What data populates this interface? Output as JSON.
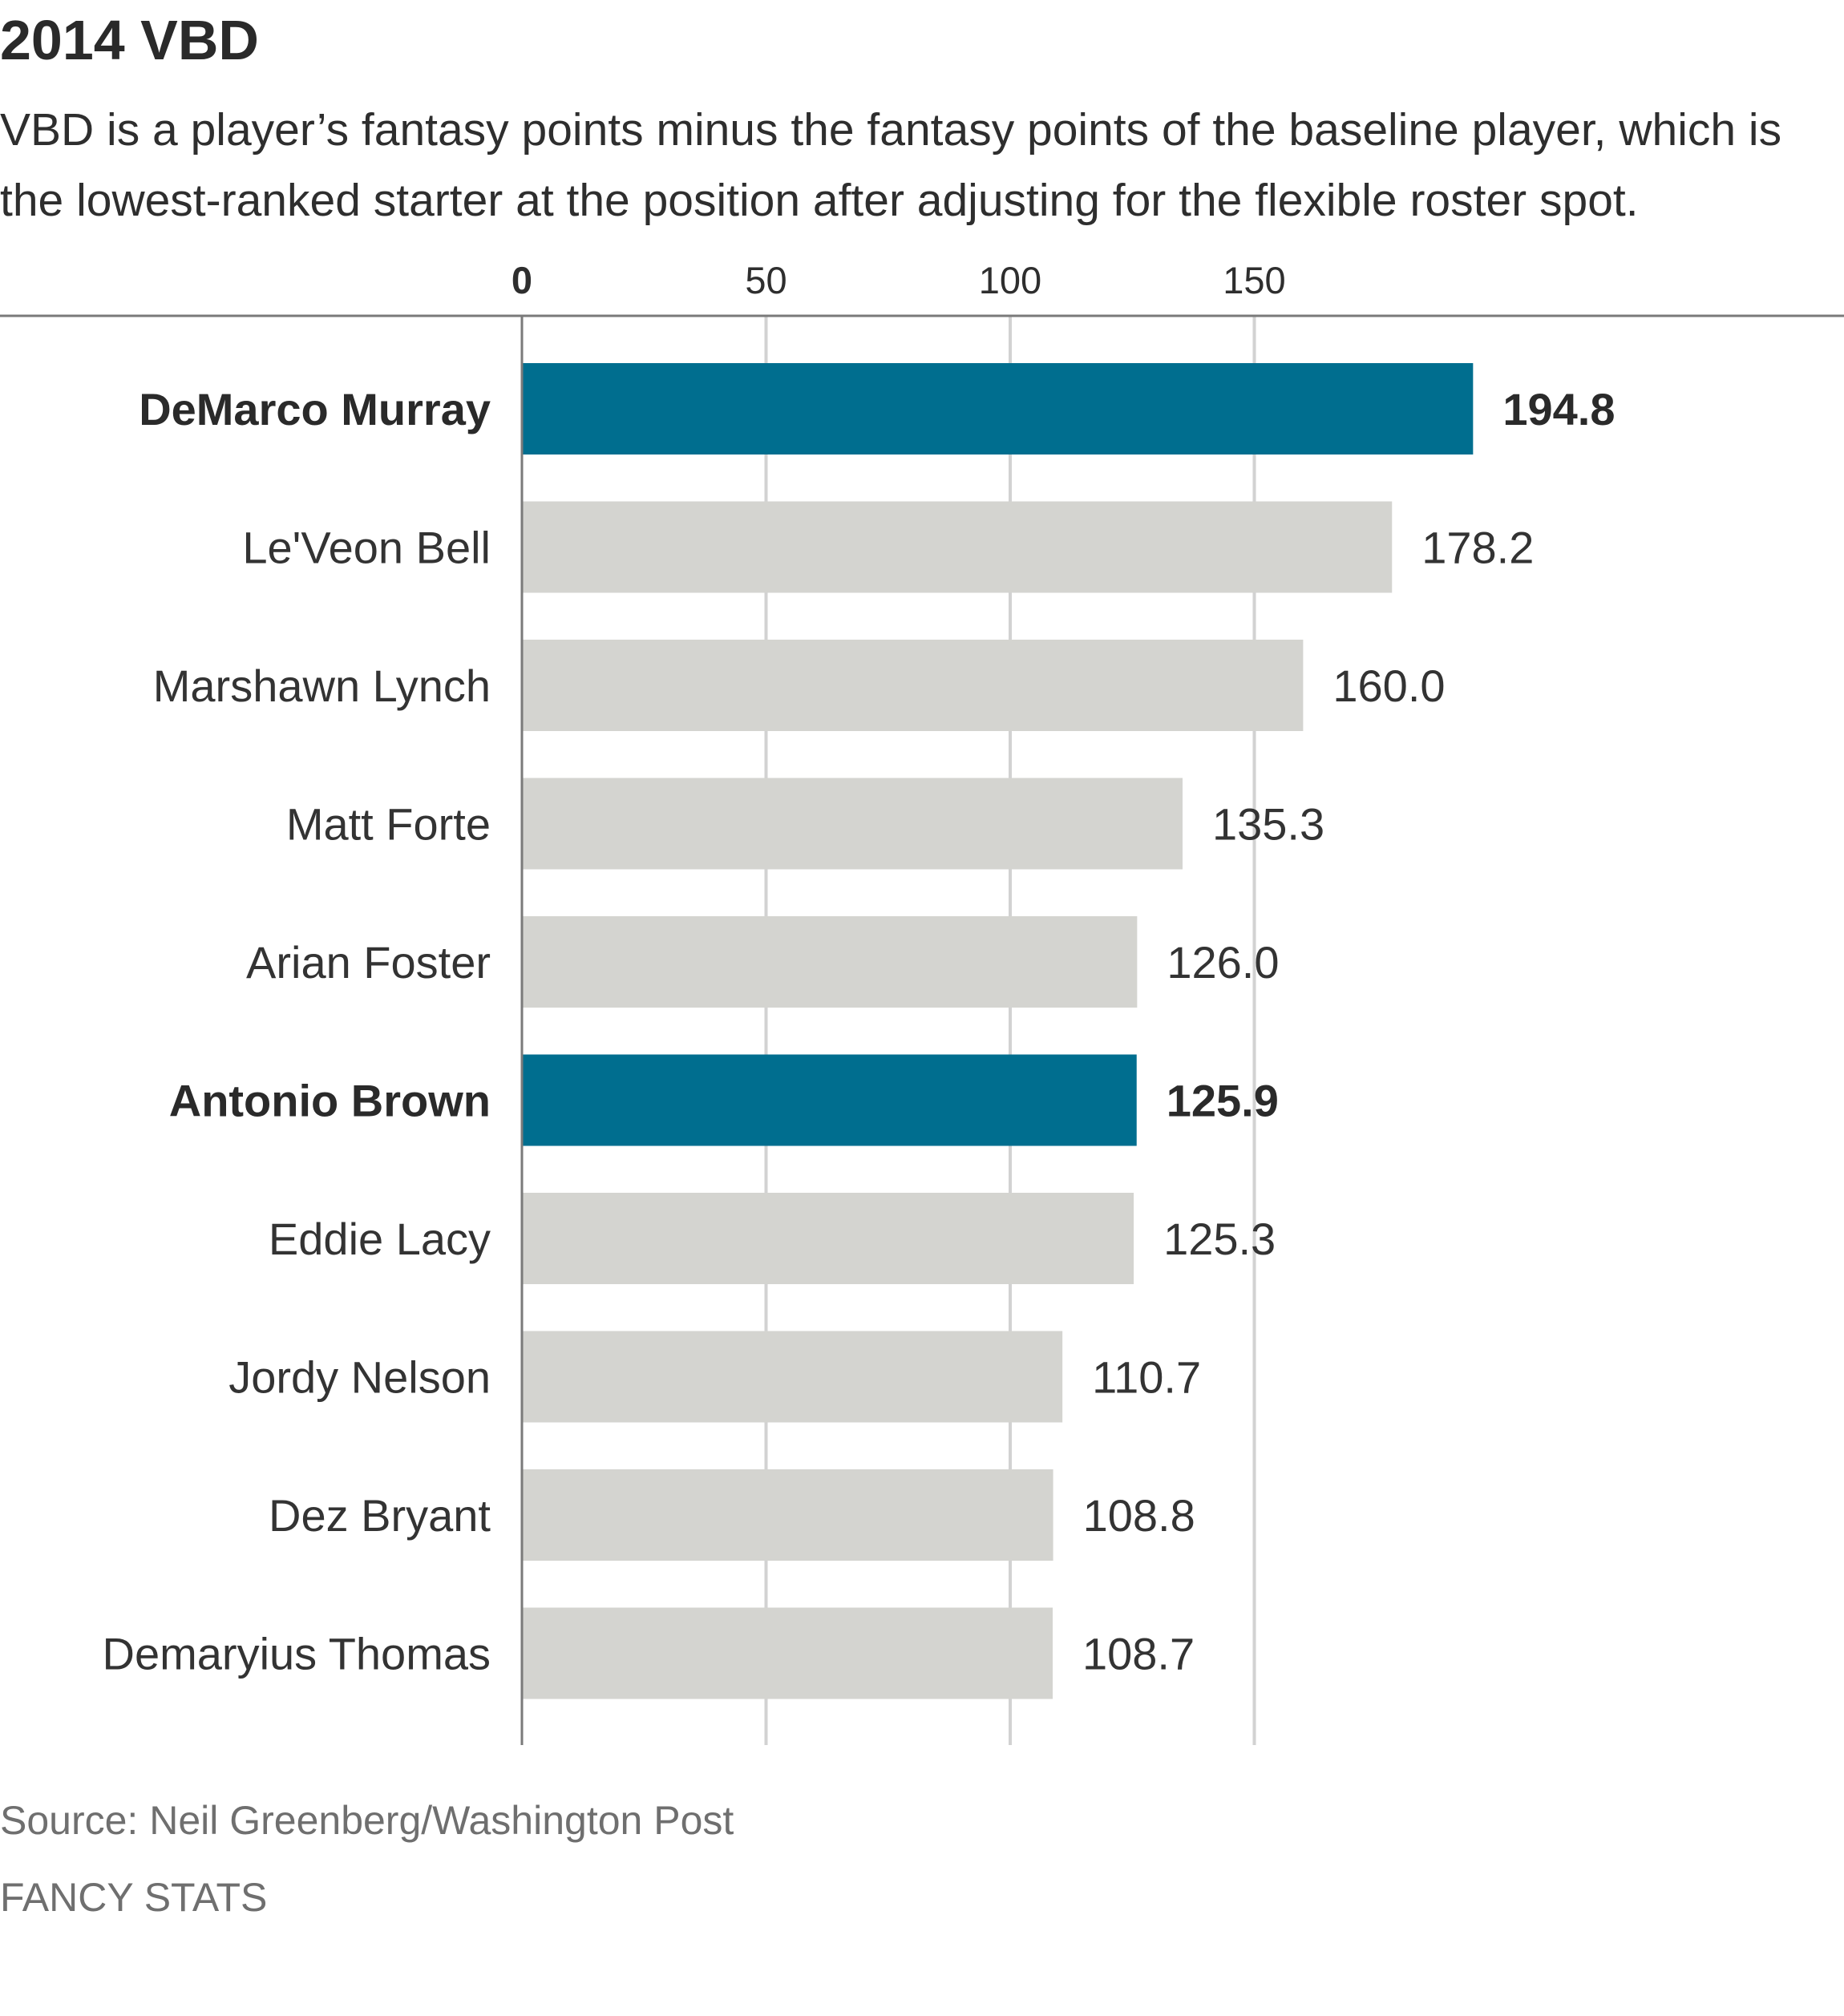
{
  "title": "2014 VBD",
  "subtitle": "VBD is a player’s fantasy points minus the fantasy points of the baseline player, which is the lowest-ranked starter at the position after adjusting for the flexible roster spot.",
  "source": "Source: Neil Greenberg/Washington Post",
  "brand": "FANCY STATS",
  "colors": {
    "highlight": "#006e8f",
    "bar": "#d4d4d0",
    "grid": "#d2d2d2",
    "axis": "#7a7a7a",
    "text": "#333333"
  },
  "chart_data": {
    "type": "bar",
    "orientation": "horizontal",
    "categories": [
      "DeMarco Murray",
      "Le'Veon Bell",
      "Marshawn Lynch",
      "Matt Forte",
      "Arian Foster",
      "Antonio Brown",
      "Eddie Lacy",
      "Jordy Nelson",
      "Dez Bryant",
      "Demaryius Thomas"
    ],
    "values": [
      194.8,
      178.2,
      160.0,
      135.3,
      126.0,
      125.9,
      125.3,
      110.7,
      108.8,
      108.7
    ],
    "value_labels": [
      "194.8",
      "178.2",
      "160.0",
      "135.3",
      "126.0",
      "125.9",
      "125.3",
      "110.7",
      "108.8",
      "108.7"
    ],
    "highlighted": [
      true,
      false,
      false,
      false,
      false,
      true,
      false,
      false,
      false,
      false
    ],
    "xticks": [
      0,
      50,
      100,
      150
    ],
    "xtick_labels": [
      "0",
      "50",
      "100",
      "150"
    ],
    "xlim": [
      0,
      200
    ],
    "grid": true,
    "xlabel": "",
    "ylabel": ""
  }
}
